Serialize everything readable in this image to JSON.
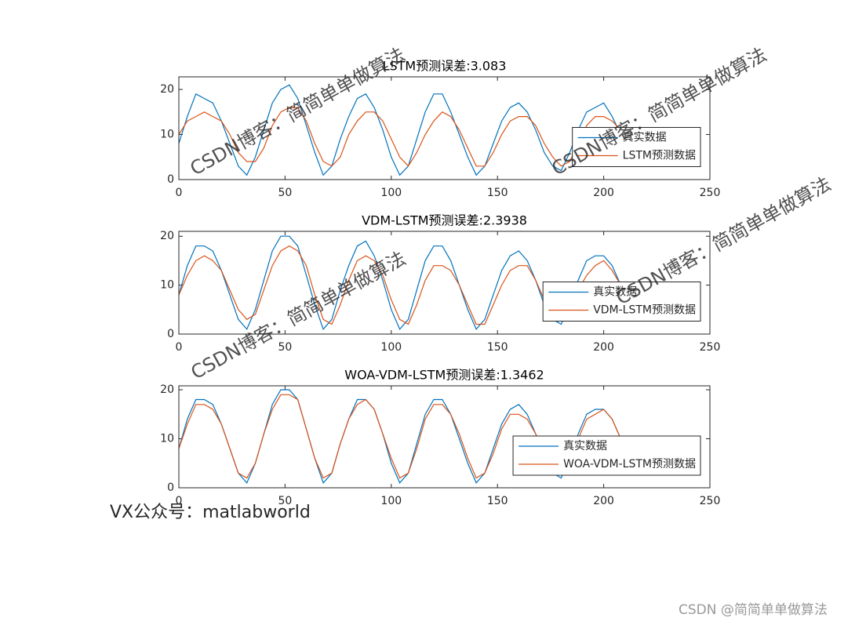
{
  "chart_data": [
    {
      "type": "line",
      "title": "LSTM预测误差:3.083",
      "x": [
        0,
        4,
        8,
        12,
        16,
        20,
        24,
        28,
        32,
        36,
        40,
        44,
        48,
        52,
        56,
        60,
        64,
        68,
        72,
        76,
        80,
        84,
        88,
        92,
        96,
        100,
        104,
        108,
        112,
        116,
        120,
        124,
        128,
        132,
        136,
        140,
        144,
        148,
        152,
        156,
        160,
        164,
        168,
        172,
        176,
        180,
        184,
        188,
        192,
        196,
        200,
        204,
        208
      ],
      "series": [
        {
          "name": "真实数据",
          "color": "#0072bd",
          "values": [
            8,
            14,
            19,
            18,
            17,
            13,
            8,
            3,
            1,
            5,
            11,
            17,
            20,
            21,
            18,
            12,
            6,
            1,
            3,
            9,
            14,
            18,
            19,
            16,
            11,
            5,
            1,
            3,
            9,
            15,
            19,
            19,
            15,
            10,
            5,
            1,
            3,
            8,
            13,
            16,
            17,
            15,
            11,
            6,
            3,
            2,
            6,
            11,
            15,
            16,
            17,
            14,
            10
          ]
        },
        {
          "name": "LSTM预测数据",
          "color": "#d95319",
          "values": [
            10,
            13,
            14,
            15,
            14,
            13,
            10,
            6,
            4,
            4,
            7,
            12,
            15,
            16,
            16,
            13,
            8,
            4,
            3,
            5,
            10,
            13,
            15,
            15,
            13,
            9,
            5,
            3,
            6,
            10,
            13,
            15,
            14,
            11,
            7,
            3,
            3,
            6,
            10,
            13,
            14,
            14,
            12,
            8,
            5,
            3,
            4,
            8,
            12,
            14,
            14,
            13,
            11
          ]
        }
      ],
      "xlim": [
        0,
        250
      ],
      "xticks": [
        0,
        50,
        100,
        150,
        200,
        250
      ],
      "ylim": [
        0,
        22.8
      ],
      "yticks": [
        0,
        10,
        20
      ],
      "legend": "east"
    },
    {
      "type": "line",
      "title": "VDM-LSTM预测误差:2.3938",
      "x": [
        0,
        4,
        8,
        12,
        16,
        20,
        24,
        28,
        32,
        36,
        40,
        44,
        48,
        52,
        56,
        60,
        64,
        68,
        72,
        76,
        80,
        84,
        88,
        92,
        96,
        100,
        104,
        108,
        112,
        116,
        120,
        124,
        128,
        132,
        136,
        140,
        144,
        148,
        152,
        156,
        160,
        164,
        168,
        172,
        176,
        180,
        184,
        188,
        192,
        196,
        200,
        204,
        208
      ],
      "series": [
        {
          "name": "真实数据",
          "color": "#0072bd",
          "values": [
            8,
            14,
            18,
            18,
            17,
            13,
            8,
            3,
            1,
            5,
            11,
            17,
            20,
            20,
            18,
            12,
            6,
            1,
            3,
            9,
            14,
            18,
            19,
            16,
            11,
            5,
            1,
            3,
            9,
            15,
            18,
            18,
            15,
            10,
            5,
            1,
            3,
            8,
            13,
            16,
            17,
            15,
            11,
            6,
            3,
            2,
            6,
            11,
            15,
            16,
            16,
            14,
            10
          ]
        },
        {
          "name": "VDM-LSTM预测数据",
          "color": "#d95319",
          "values": [
            8,
            12,
            15,
            16,
            15,
            13,
            9,
            5,
            3,
            4,
            9,
            14,
            17,
            18,
            17,
            14,
            8,
            3,
            2,
            6,
            11,
            15,
            16,
            15,
            12,
            7,
            3,
            2,
            6,
            11,
            14,
            14,
            13,
            10,
            6,
            2,
            2,
            6,
            10,
            13,
            14,
            14,
            11,
            7,
            4,
            3,
            5,
            9,
            12,
            14,
            15,
            13,
            10
          ]
        }
      ],
      "xlim": [
        0,
        250
      ],
      "xticks": [
        0,
        50,
        100,
        150,
        200,
        250
      ],
      "ylim": [
        0,
        21
      ],
      "yticks": [
        0,
        10,
        20
      ],
      "legend": "east"
    },
    {
      "type": "line",
      "title": "WOA-VDM-LSTM预测误差:1.3462",
      "x": [
        0,
        4,
        8,
        12,
        16,
        20,
        24,
        28,
        32,
        36,
        40,
        44,
        48,
        52,
        56,
        60,
        64,
        68,
        72,
        76,
        80,
        84,
        88,
        92,
        96,
        100,
        104,
        108,
        112,
        116,
        120,
        124,
        128,
        132,
        136,
        140,
        144,
        148,
        152,
        156,
        160,
        164,
        168,
        172,
        176,
        180,
        184,
        188,
        192,
        196,
        200,
        204,
        208
      ],
      "series": [
        {
          "name": "真实数据",
          "color": "#0072bd",
          "values": [
            8,
            14,
            18,
            18,
            17,
            13,
            8,
            3,
            1,
            5,
            11,
            17,
            20,
            20,
            18,
            12,
            6,
            1,
            3,
            9,
            14,
            18,
            18,
            16,
            11,
            5,
            1,
            3,
            9,
            15,
            18,
            18,
            15,
            10,
            5,
            1,
            3,
            8,
            13,
            16,
            17,
            15,
            11,
            6,
            3,
            2,
            6,
            11,
            15,
            16,
            16,
            14,
            10
          ]
        },
        {
          "name": "WOA-VDM-LSTM预测数据",
          "color": "#d95319",
          "values": [
            8,
            13,
            17,
            17,
            16,
            13,
            8,
            3,
            2,
            5,
            11,
            16,
            19,
            19,
            18,
            12,
            6,
            2,
            3,
            9,
            14,
            17,
            18,
            16,
            11,
            6,
            2,
            3,
            8,
            14,
            17,
            17,
            15,
            11,
            6,
            2,
            3,
            7,
            12,
            15,
            15,
            14,
            11,
            7,
            4,
            3,
            6,
            10,
            14,
            15,
            16,
            14,
            10
          ]
        }
      ],
      "xlim": [
        0,
        250
      ],
      "xticks": [
        0,
        50,
        100,
        150,
        200,
        250
      ],
      "ylim": [
        0,
        20.8
      ],
      "yticks": [
        0,
        10,
        20
      ],
      "legend": "east"
    }
  ],
  "watermarks": [
    "CSDN博客：简简单单做算法",
    "CSDN博客：简简单单做算法",
    "CSDN博客：简简单单做算法",
    "CSDN博客：简简单单做算法"
  ],
  "footer_note": "VX公众号：matlabworld",
  "credit": "CSDN @简简单单做算法"
}
